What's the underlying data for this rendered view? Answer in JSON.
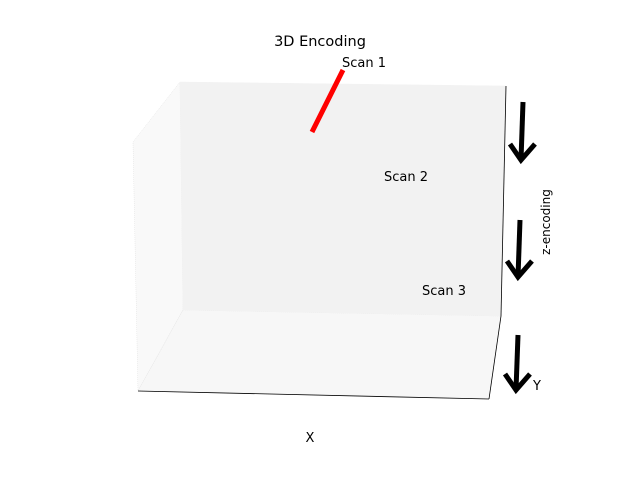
{
  "chart_data": {
    "type": "3d-line",
    "title": "3D Encoding",
    "xlabel": "X",
    "ylabel": "Y",
    "zlabel": "z-encoding",
    "grid": true,
    "colors": {
      "line": "#ff0000",
      "arrow": "#000000",
      "pane": "#f2f2f2",
      "floor": "#f7f7f7"
    },
    "annotations": [
      {
        "label": "Scan 1"
      },
      {
        "label": "Scan 2"
      },
      {
        "label": "Scan 3"
      }
    ],
    "series": [
      {
        "points": [
          {
            "x": 0.55,
            "y": 0.5,
            "z": 1.0
          },
          {
            "x": 0.48,
            "y": 0.5,
            "z": 0.75
          }
        ]
      }
    ],
    "arrows": [
      {
        "icon": "arrow-down-icon"
      },
      {
        "icon": "arrow-down-icon"
      },
      {
        "icon": "arrow-down-icon"
      }
    ]
  }
}
